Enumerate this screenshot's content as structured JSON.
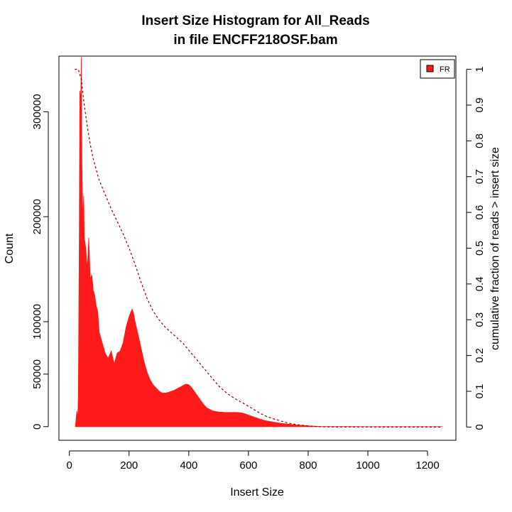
{
  "chart_data": {
    "type": "area",
    "title": "Insert Size Histogram for All_Reads",
    "subtitle": "in file ENCFF218OSF.bam",
    "xlabel": "Insert Size",
    "ylabel": "Count",
    "y2label": "cumulative fraction of reads > insert size",
    "xlim": [
      -35,
      1295
    ],
    "ylim": [
      -13000,
      353000
    ],
    "y2lim": [
      -0.037,
      1.037
    ],
    "x_ticks": [
      0,
      200,
      400,
      600,
      800,
      1000,
      1200
    ],
    "y_ticks": [
      0,
      50000,
      100000,
      200000,
      300000
    ],
    "y2_ticks": [
      0,
      0.1,
      0.2,
      0.3,
      0.4,
      0.5,
      0.6,
      0.7,
      0.8,
      0.9,
      1
    ],
    "legend": {
      "position": "top-right",
      "entries": [
        {
          "label": "FR",
          "color": "#ff1a1a"
        }
      ]
    },
    "series": [
      {
        "name": "FR",
        "kind": "histogram",
        "color": "#ff1a1a",
        "x": [
          20,
          25,
          28,
          30,
          33,
          35,
          38,
          40,
          42,
          45,
          48,
          50,
          55,
          60,
          65,
          70,
          75,
          80,
          85,
          90,
          95,
          100,
          110,
          120,
          130,
          140,
          150,
          160,
          170,
          180,
          190,
          200,
          210,
          215,
          220,
          230,
          240,
          250,
          260,
          270,
          280,
          290,
          300,
          310,
          320,
          330,
          340,
          350,
          360,
          370,
          380,
          390,
          400,
          410,
          420,
          430,
          440,
          450,
          460,
          480,
          500,
          520,
          540,
          560,
          580,
          590,
          600,
          620,
          640,
          660,
          680,
          700,
          720,
          740,
          760,
          780,
          800,
          820,
          840,
          860,
          880,
          900,
          950,
          1000,
          1050,
          1100,
          1150,
          1200,
          1250
        ],
        "values": [
          0,
          15000,
          8000,
          30000,
          180000,
          320000,
          310000,
          352000,
          250000,
          200000,
          220000,
          180000,
          170000,
          150000,
          180000,
          140000,
          145000,
          130000,
          125000,
          115000,
          110000,
          90000,
          80000,
          70000,
          65000,
          72000,
          60000,
          70000,
          72000,
          80000,
          95000,
          105000,
          112000,
          108000,
          100000,
          88000,
          75000,
          62000,
          52000,
          45000,
          40000,
          37000,
          34000,
          32000,
          32000,
          32500,
          33500,
          34500,
          36000,
          37500,
          39000,
          40500,
          40000,
          37000,
          33000,
          29000,
          25000,
          21000,
          18000,
          15000,
          14000,
          13500,
          13500,
          13500,
          13000,
          12000,
          11000,
          9000,
          7000,
          5500,
          4500,
          3500,
          2800,
          2200,
          1600,
          1100,
          700,
          400,
          200,
          120,
          80,
          50,
          30,
          20,
          15,
          10,
          8,
          5,
          0
        ]
      },
      {
        "name": "cumulative fraction of reads > insert size",
        "kind": "cumulative",
        "axis": "right",
        "color": "#8b0000",
        "x": [
          18,
          30,
          35,
          40,
          45,
          50,
          60,
          70,
          80,
          90,
          100,
          120,
          140,
          160,
          180,
          200,
          220,
          240,
          260,
          280,
          300,
          320,
          340,
          360,
          380,
          400,
          420,
          440,
          460,
          480,
          500,
          520,
          540,
          560,
          580,
          600,
          620,
          640,
          660,
          680,
          700,
          720,
          740,
          760,
          780,
          800,
          820,
          840,
          860,
          900,
          1000,
          1100,
          1250
        ],
        "values": [
          1.0,
          1.0,
          0.985,
          0.975,
          0.935,
          0.9,
          0.84,
          0.79,
          0.75,
          0.72,
          0.69,
          0.65,
          0.61,
          0.575,
          0.54,
          0.5,
          0.455,
          0.405,
          0.36,
          0.325,
          0.3,
          0.28,
          0.265,
          0.25,
          0.235,
          0.215,
          0.195,
          0.175,
          0.155,
          0.135,
          0.115,
          0.1,
          0.087,
          0.077,
          0.068,
          0.058,
          0.048,
          0.038,
          0.03,
          0.024,
          0.019,
          0.014,
          0.01,
          0.007,
          0.005,
          0.003,
          0.002,
          0.001,
          0.0005,
          0.0002,
          0.0001,
          0.0,
          0.0
        ]
      }
    ]
  }
}
